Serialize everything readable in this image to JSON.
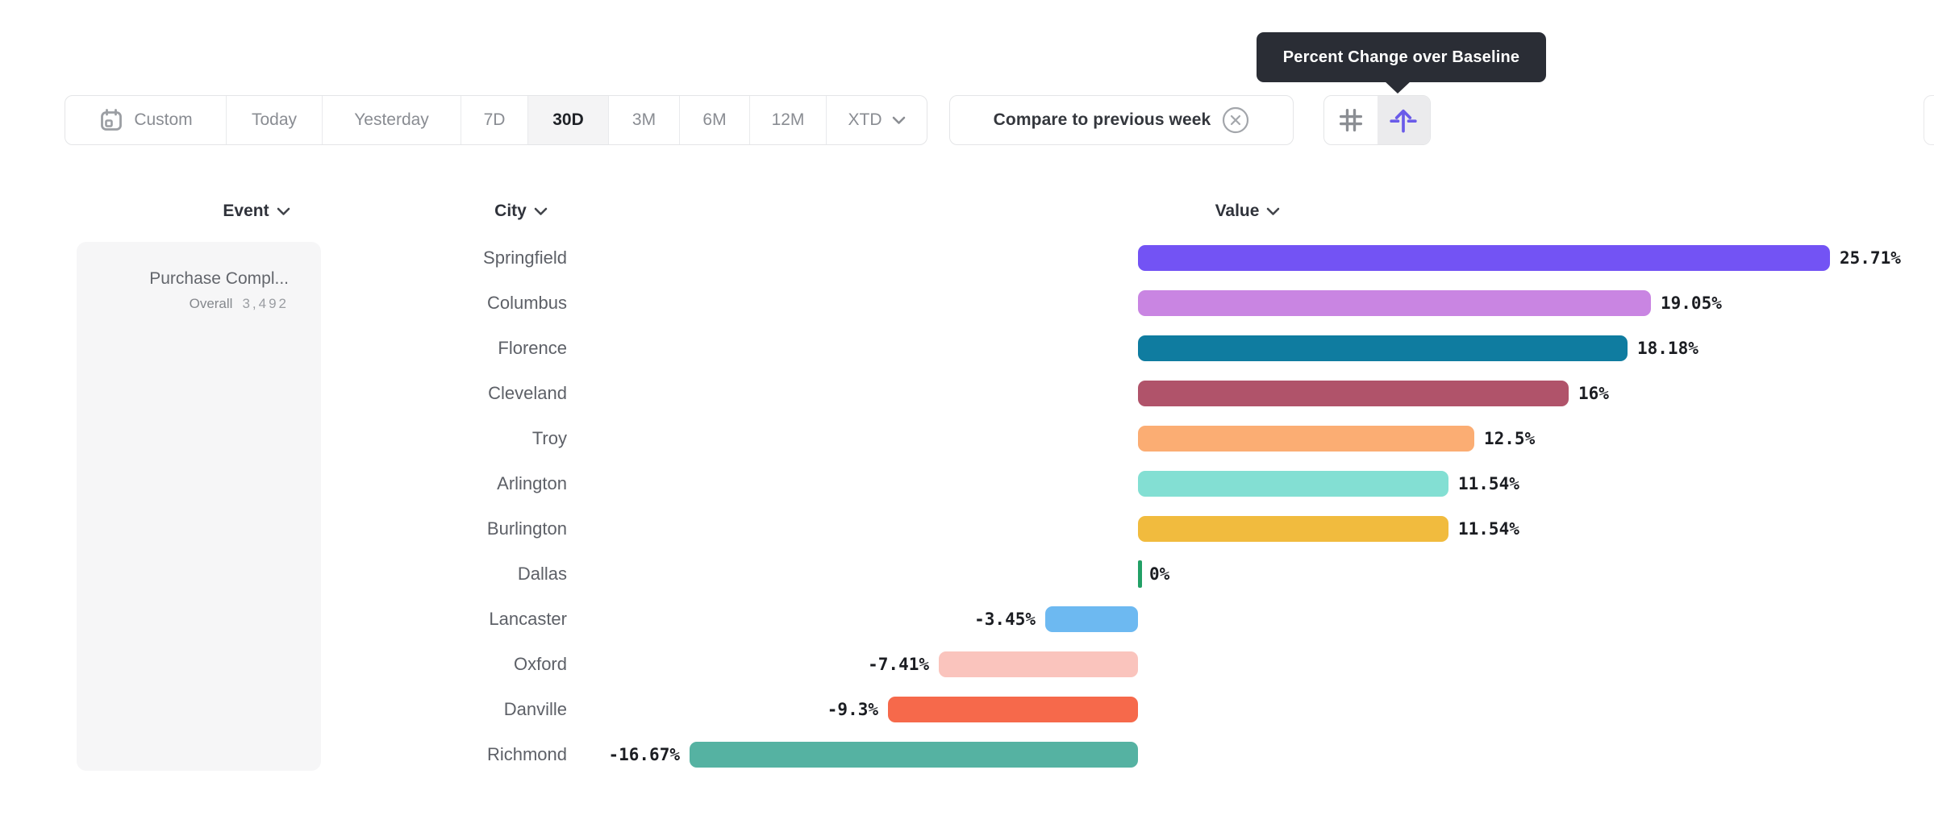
{
  "tooltip": {
    "text": "Percent Change over Baseline",
    "bg": "#2a2d35"
  },
  "toolbar": {
    "date_buttons": [
      {
        "label": "Custom",
        "icon": "calendar",
        "selected": false
      },
      {
        "label": "Today",
        "selected": false
      },
      {
        "label": "Yesterday",
        "selected": false
      },
      {
        "label": "7D",
        "selected": false
      },
      {
        "label": "30D",
        "selected": true
      },
      {
        "label": "3M",
        "selected": false
      },
      {
        "label": "6M",
        "selected": false
      },
      {
        "label": "12M",
        "selected": false
      },
      {
        "label": "XTD",
        "chevron": true,
        "selected": false
      }
    ],
    "compare_chip": {
      "label": "Compare to previous week",
      "close_icon": "circle-x"
    },
    "view_toggle": {
      "left_icon": "hash-grid",
      "right_icon": "percent-baseline-arrow",
      "selected": "right",
      "accent": "#6a5be9"
    }
  },
  "columns": [
    {
      "label": "Event"
    },
    {
      "label": "City"
    },
    {
      "label": "Value"
    }
  ],
  "event_panel": {
    "name": "Purchase Compl...",
    "overall_label": "Overall",
    "overall_value": "3,492"
  },
  "chart_data": {
    "type": "bar",
    "orientation": "horizontal",
    "unit": "percent_change_over_baseline",
    "categories": [
      "Springfield",
      "Columbus",
      "Florence",
      "Cleveland",
      "Troy",
      "Arlington",
      "Burlington",
      "Dallas",
      "Lancaster",
      "Oxford",
      "Danville",
      "Richmond"
    ],
    "values": [
      25.71,
      19.05,
      18.18,
      16,
      12.5,
      11.54,
      11.54,
      0,
      -3.45,
      -7.41,
      -9.3,
      -16.67
    ],
    "labels": [
      "25.71%",
      "19.05%",
      "18.18%",
      "16%",
      "12.5%",
      "11.54%",
      "11.54%",
      "0%",
      "-3.45%",
      "-7.41%",
      "-9.3%",
      "-16.67%"
    ],
    "colors": [
      "#7353f4",
      "#c985e2",
      "#0f7ca0",
      "#b0536a",
      "#fbad73",
      "#83dfd3",
      "#f1bb3e",
      "#22a066",
      "#6db9f1",
      "#fac4bd",
      "#f6694b",
      "#55b2a2"
    ],
    "zero_tick_color": "#22a066",
    "xlim": [
      -16.67,
      25.71
    ],
    "grid": false,
    "legend": false
  }
}
